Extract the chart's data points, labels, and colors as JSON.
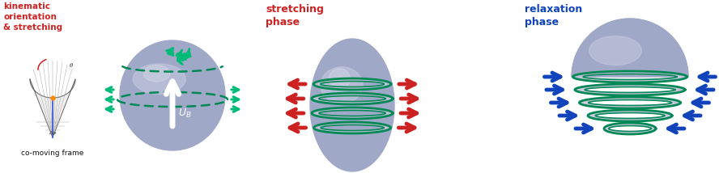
{
  "bg_color": "#ffffff",
  "green_ring": "#008855",
  "green_arrow": "#00bb77",
  "bubble_fill": "#a0a8c8",
  "bubble_light": "#c8ccdf",
  "ring_band": "#c8c0dc",
  "arrow_red": "#cc2222",
  "arrow_blue": "#1144bb",
  "text_red": "#cc2222",
  "text_blue": "#1144bb",
  "text_black": "#111111",
  "label1": "kinematic\norientation\n& stretching",
  "label2": "stretching\nphase",
  "label3": "relaxation\nphase",
  "comoving": "co-moving frame"
}
